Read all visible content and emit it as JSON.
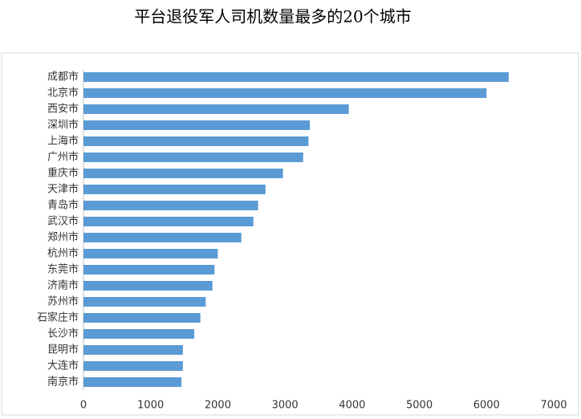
{
  "chart_data": {
    "type": "barh",
    "title": "平台退役军人司机数量最多的20个城市",
    "categories": [
      "成都市",
      "北京市",
      "西安市",
      "深圳市",
      "上海市",
      "广州市",
      "重庆市",
      "天津市",
      "青岛市",
      "武汉市",
      "郑州市",
      "杭州市",
      "东莞市",
      "济南市",
      "苏州市",
      "石家庄市",
      "长沙市",
      "昆明市",
      "大连市",
      "南京市"
    ],
    "values": [
      6330,
      6000,
      3950,
      3370,
      3350,
      3270,
      2970,
      2710,
      2600,
      2530,
      2350,
      2000,
      1950,
      1920,
      1820,
      1740,
      1650,
      1480,
      1480,
      1460
    ],
    "color": "#5b9bd5",
    "xlim": [
      0,
      7000
    ],
    "xticks": [
      0,
      1000,
      2000,
      3000,
      4000,
      5000,
      6000,
      7000
    ],
    "grid": false
  }
}
